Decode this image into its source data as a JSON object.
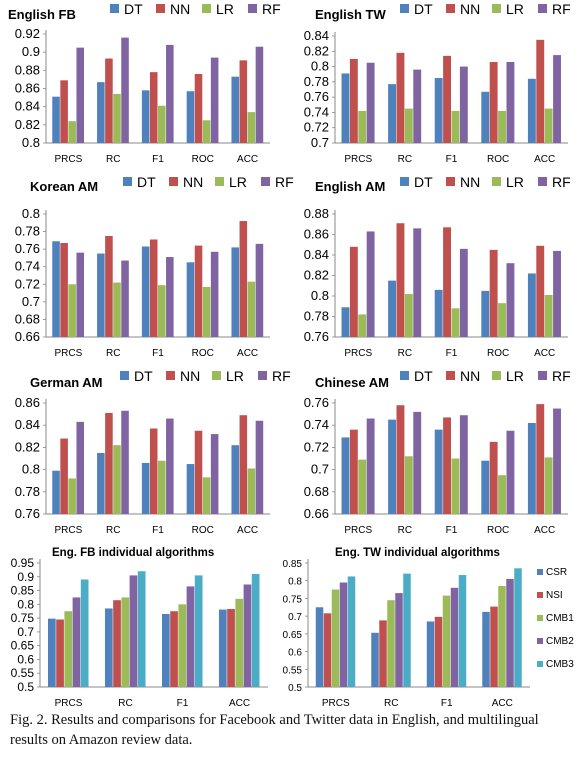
{
  "figure": {
    "caption": "Fig. 2.  Results and comparisons for Facebook and Twitter data in English, and multilingual results on Amazon review data."
  },
  "colors": {
    "DT": "#4f81bd",
    "NN": "#c0504d",
    "LR": "#9bbb59",
    "RF": "#8064a2",
    "CSR": "#4f81bd",
    "NSI": "#c0504d",
    "CMB1": "#9bbb59",
    "CMB2": "#8064a2",
    "CMB3": "#4bacc6"
  },
  "chart_data": [
    {
      "type": "bar",
      "title": "English FB",
      "categories": [
        "PRCS",
        "RC",
        "F1",
        "ROC",
        "ACC"
      ],
      "ylim": [
        0.8,
        0.92
      ],
      "yticks": [
        0.8,
        0.82,
        0.84,
        0.86,
        0.88,
        0.9,
        0.92
      ],
      "series": [
        {
          "name": "DT",
          "values": [
            0.851,
            0.867,
            0.858,
            0.857,
            0.873
          ]
        },
        {
          "name": "NN",
          "values": [
            0.869,
            0.893,
            0.878,
            0.876,
            0.891
          ]
        },
        {
          "name": "LR",
          "values": [
            0.824,
            0.854,
            0.841,
            0.825,
            0.834
          ]
        },
        {
          "name": "RF",
          "values": [
            0.905,
            0.916,
            0.908,
            0.894,
            0.906
          ]
        }
      ],
      "legend": "top"
    },
    {
      "type": "bar",
      "title": "English TW",
      "categories": [
        "PRCS",
        "RC",
        "F1",
        "ROC",
        "ACC"
      ],
      "ylim": [
        0.7,
        0.84
      ],
      "yticks": [
        0.7,
        0.72,
        0.74,
        0.76,
        0.78,
        0.8,
        0.82,
        0.84
      ],
      "series": [
        {
          "name": "DT",
          "values": [
            0.791,
            0.777,
            0.785,
            0.767,
            0.784
          ]
        },
        {
          "name": "NN",
          "values": [
            0.81,
            0.818,
            0.814,
            0.806,
            0.835
          ]
        },
        {
          "name": "LR",
          "values": [
            0.742,
            0.745,
            0.742,
            0.742,
            0.745
          ]
        },
        {
          "name": "RF",
          "values": [
            0.805,
            0.796,
            0.8,
            0.806,
            0.815
          ]
        }
      ],
      "legend": "top"
    },
    {
      "type": "bar",
      "title": "Korean AM",
      "categories": [
        "PRCS",
        "RC",
        "F1",
        "ROC",
        "ACC"
      ],
      "ylim": [
        0.66,
        0.8
      ],
      "yticks": [
        0.66,
        0.68,
        0.7,
        0.72,
        0.74,
        0.76,
        0.78,
        0.8
      ],
      "series": [
        {
          "name": "DT",
          "values": [
            0.769,
            0.755,
            0.763,
            0.745,
            0.762
          ]
        },
        {
          "name": "NN",
          "values": [
            0.767,
            0.775,
            0.771,
            0.764,
            0.792
          ]
        },
        {
          "name": "LR",
          "values": [
            0.72,
            0.722,
            0.719,
            0.717,
            0.723
          ]
        },
        {
          "name": "RF",
          "values": [
            0.756,
            0.747,
            0.751,
            0.757,
            0.766
          ]
        }
      ],
      "legend": "top"
    },
    {
      "type": "bar",
      "title": "English AM",
      "categories": [
        "PRCS",
        "RC",
        "F1",
        "ROC",
        "ACC"
      ],
      "ylim": [
        0.76,
        0.88
      ],
      "yticks": [
        0.76,
        0.78,
        0.8,
        0.82,
        0.84,
        0.86,
        0.88
      ],
      "series": [
        {
          "name": "DT",
          "values": [
            0.789,
            0.815,
            0.806,
            0.805,
            0.822
          ]
        },
        {
          "name": "NN",
          "values": [
            0.848,
            0.871,
            0.867,
            0.845,
            0.849
          ]
        },
        {
          "name": "LR",
          "values": [
            0.782,
            0.802,
            0.788,
            0.793,
            0.801
          ]
        },
        {
          "name": "RF",
          "values": [
            0.863,
            0.866,
            0.846,
            0.832,
            0.844
          ]
        }
      ],
      "legend": "top"
    },
    {
      "type": "bar",
      "title": "German AM",
      "categories": [
        "PRCS",
        "RC",
        "F1",
        "ROC",
        "ACC"
      ],
      "ylim": [
        0.76,
        0.86
      ],
      "yticks": [
        0.76,
        0.78,
        0.8,
        0.82,
        0.84,
        0.86
      ],
      "series": [
        {
          "name": "DT",
          "values": [
            0.799,
            0.815,
            0.806,
            0.805,
            0.822
          ]
        },
        {
          "name": "NN",
          "values": [
            0.828,
            0.851,
            0.837,
            0.835,
            0.849
          ]
        },
        {
          "name": "LR",
          "values": [
            0.792,
            0.822,
            0.808,
            0.793,
            0.801
          ]
        },
        {
          "name": "RF",
          "values": [
            0.843,
            0.853,
            0.846,
            0.832,
            0.844
          ]
        }
      ],
      "legend": "top"
    },
    {
      "type": "bar",
      "title": "Chinese AM",
      "categories": [
        "PRCS",
        "RC",
        "F1",
        "ROC",
        "ACC"
      ],
      "ylim": [
        0.66,
        0.76
      ],
      "yticks": [
        0.66,
        0.68,
        0.7,
        0.72,
        0.74,
        0.76
      ],
      "series": [
        {
          "name": "DT",
          "values": [
            0.729,
            0.745,
            0.736,
            0.708,
            0.742
          ]
        },
        {
          "name": "NN",
          "values": [
            0.736,
            0.758,
            0.747,
            0.725,
            0.759
          ]
        },
        {
          "name": "LR",
          "values": [
            0.709,
            0.712,
            0.71,
            0.695,
            0.711
          ]
        },
        {
          "name": "RF",
          "values": [
            0.746,
            0.752,
            0.749,
            0.735,
            0.755
          ]
        }
      ],
      "legend": "top"
    },
    {
      "type": "bar",
      "title": "Eng. FB individual algorithms",
      "categories": [
        "PRCS",
        "RC",
        "F1",
        "ACC"
      ],
      "ylim": [
        0.5,
        0.95
      ],
      "yticks": [
        0.5,
        0.55,
        0.6,
        0.65,
        0.7,
        0.75,
        0.8,
        0.85,
        0.9,
        0.95
      ],
      "series": [
        {
          "values": [
            0.748,
            0.785,
            0.765,
            0.781
          ]
        },
        {
          "values": [
            0.745,
            0.815,
            0.775,
            0.783
          ]
        },
        {
          "values": [
            0.775,
            0.825,
            0.8,
            0.82
          ]
        },
        {
          "values": [
            0.825,
            0.905,
            0.865,
            0.872
          ]
        },
        {
          "values": [
            0.89,
            0.92,
            0.905,
            0.91
          ]
        }
      ]
    },
    {
      "type": "bar",
      "title": "Eng. TW individual algorithms",
      "categories": [
        "PRCS",
        "RC",
        "F1",
        "ACC"
      ],
      "ylim": [
        0.5,
        0.85
      ],
      "yticks": [
        0.5,
        0.55,
        0.6,
        0.65,
        0.7,
        0.75,
        0.8,
        0.85
      ],
      "series": [
        {
          "name": "CSR",
          "values": [
            0.725,
            0.653,
            0.685,
            0.712
          ]
        },
        {
          "name": "NSI",
          "values": [
            0.708,
            0.688,
            0.698,
            0.727
          ]
        },
        {
          "name": "CMB1",
          "values": [
            0.775,
            0.745,
            0.758,
            0.785
          ]
        },
        {
          "name": "CMB2",
          "values": [
            0.795,
            0.765,
            0.78,
            0.805
          ]
        },
        {
          "name": "CMB3",
          "values": [
            0.812,
            0.82,
            0.816,
            0.835
          ]
        }
      ],
      "legend": "right"
    }
  ]
}
